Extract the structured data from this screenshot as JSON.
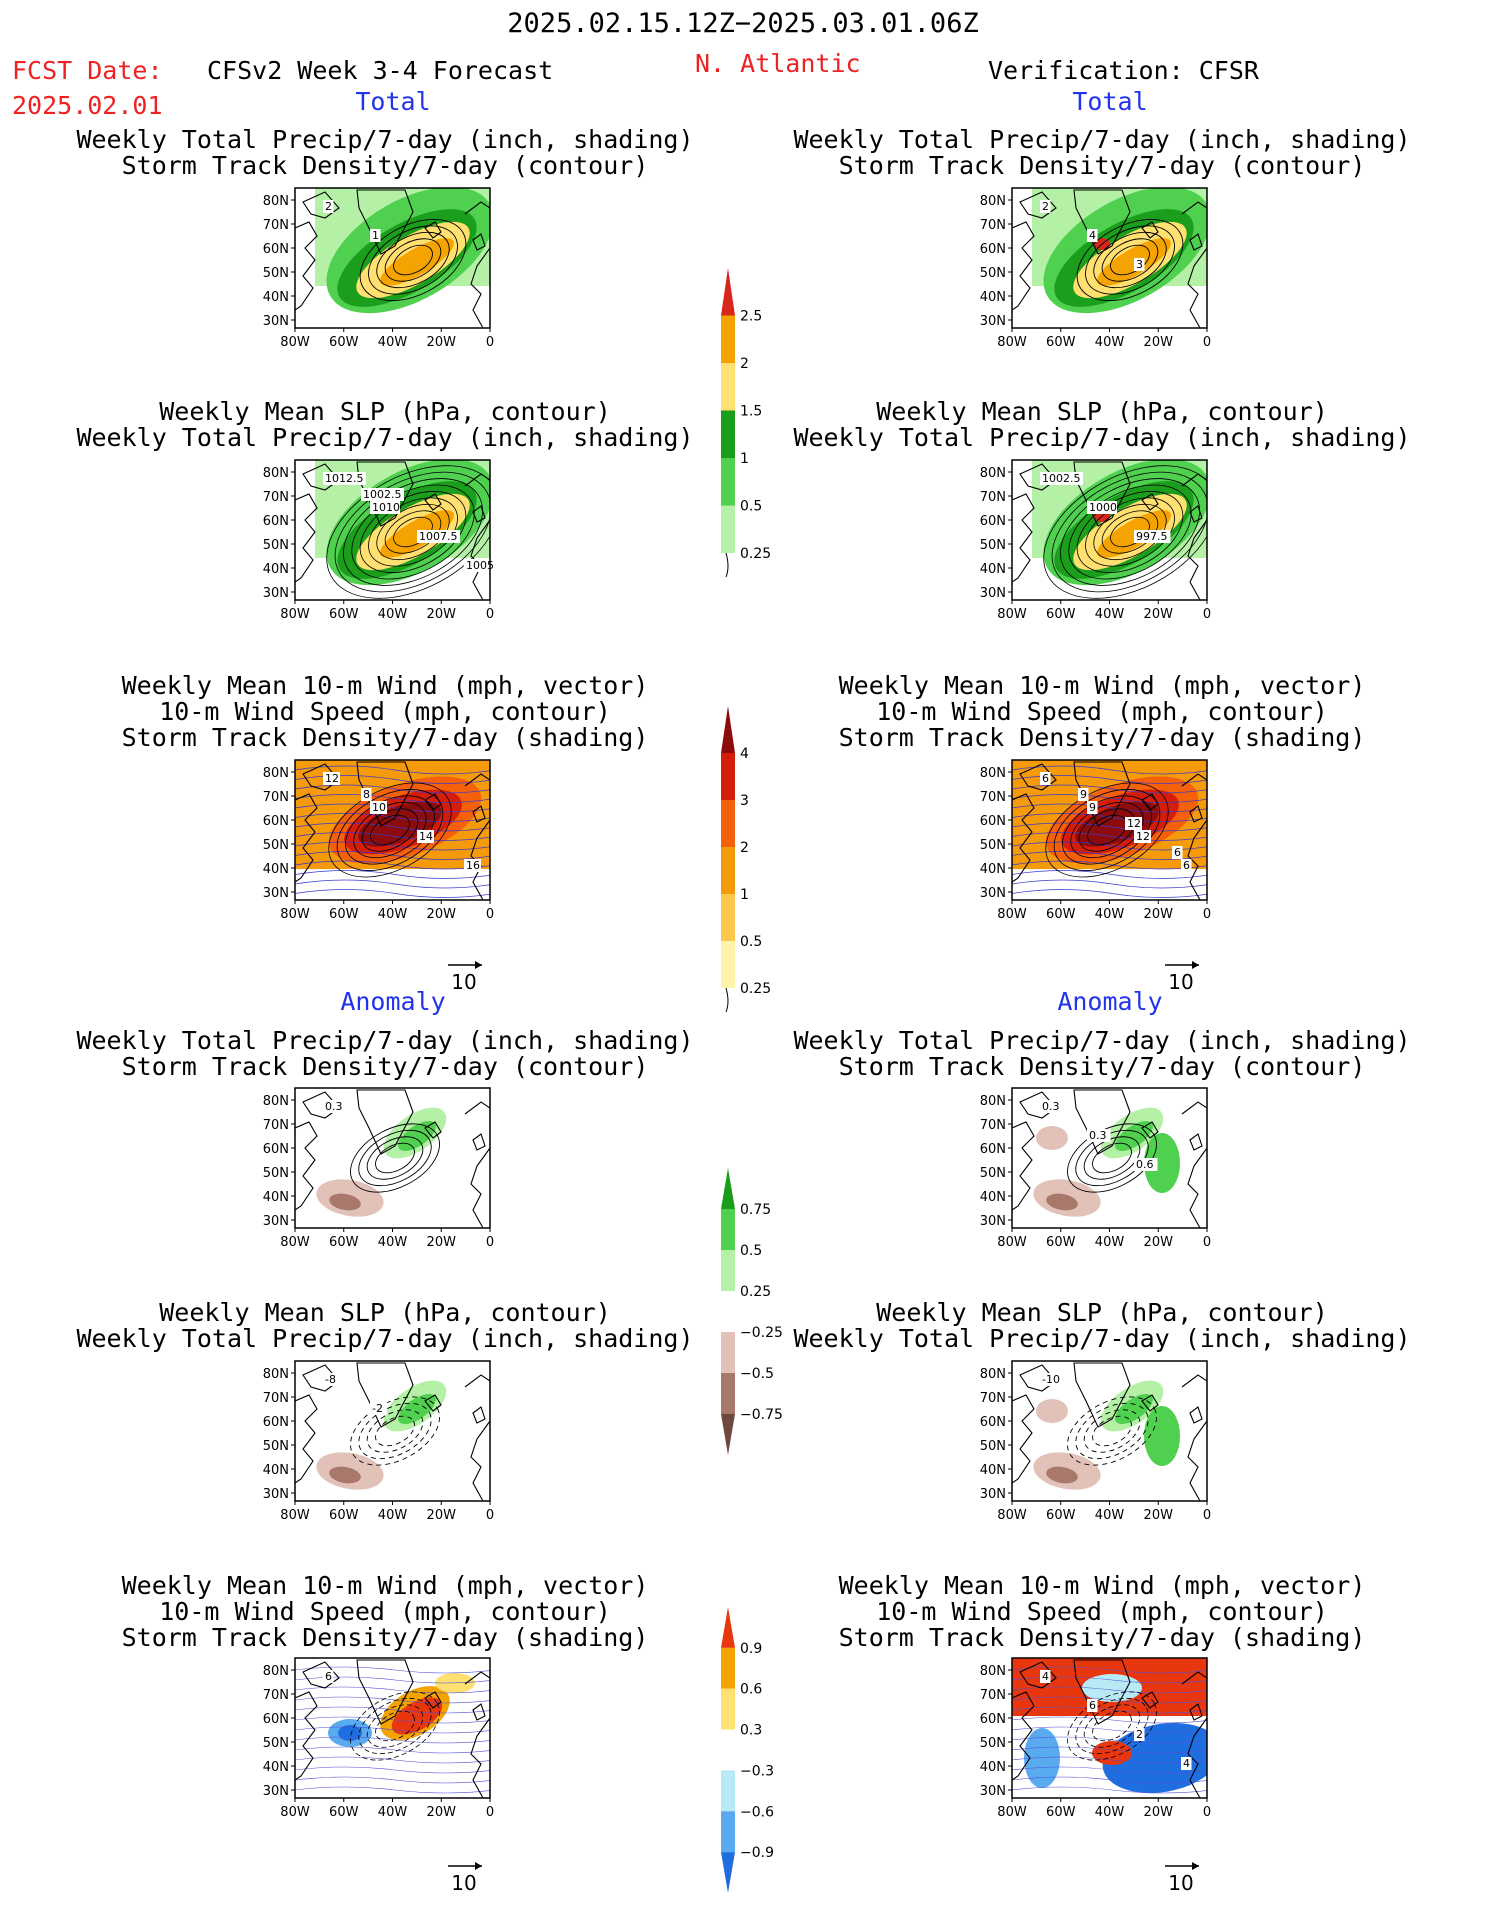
{
  "header": {
    "date_range": "2025.02.15.12Z−2025.03.01.06Z",
    "fcst_label": "FCST Date:",
    "fcst_date": "2025.02.01",
    "model_label": "CFSv2 Week 3-4 Forecast",
    "region": "N. Atlantic",
    "verification_label": "Verification: CFSR",
    "section_total": "Total",
    "section_anomaly": "Anomaly"
  },
  "panel_titles": {
    "precip_storm": [
      "Weekly Total Precip/7-day (inch, shading)",
      "Storm Track Density/7-day (contour)"
    ],
    "slp_precip": [
      "Weekly Mean SLP (hPa, contour)",
      "Weekly Total Precip/7-day (inch, shading)"
    ],
    "wind_storm": [
      "Weekly Mean 10-m Wind (mph, vector)",
      "10-m Wind Speed (mph, contour)",
      "Storm Track Density/7-day (shading)"
    ]
  },
  "axes": {
    "lat_ticks": [
      "80N",
      "70N",
      "60N",
      "50N",
      "40N",
      "30N"
    ],
    "lon_ticks": [
      "80W",
      "60W",
      "40W",
      "20W",
      "0"
    ]
  },
  "vector_ref": "10",
  "colorbars": [
    {
      "name": "total-precip",
      "labels": [
        "2.5",
        "2",
        "1.5",
        "1",
        "0.5",
        "0.25"
      ],
      "colors": [
        "#d7261c",
        "#f5a300",
        "#ffe070",
        "#1b9e1b",
        "#4fd04f",
        "#b4f0a6"
      ]
    },
    {
      "name": "total-storm",
      "labels": [
        "4",
        "3",
        "2",
        "1",
        "0.5",
        "0.25"
      ],
      "colors": [
        "#8c0c0c",
        "#d41e0a",
        "#f5600a",
        "#f59a0a",
        "#fbc84b",
        "#fff3a8"
      ]
    },
    {
      "name": "anom-precip",
      "labels": [
        "0.75",
        "0.5",
        "0.25",
        "−0.25",
        "−0.5",
        "−0.75"
      ],
      "colors": [
        "#1a9e1a",
        "#4fd04f",
        "#b4f0a6",
        "#ffffff",
        "#e2c2b8",
        "#a8786a",
        "#6e4a3e"
      ]
    },
    {
      "name": "anom-storm",
      "labels": [
        "0.9",
        "0.6",
        "0.3",
        "−0.3",
        "−0.6",
        "−0.9"
      ],
      "colors": [
        "#e8360e",
        "#f5a300",
        "#ffe070",
        "#ffffff",
        "#b8eaf5",
        "#5aaaf0",
        "#1f6ee0"
      ]
    }
  ],
  "contour_labels": {
    "total_fcst_precip": [
      "2",
      "1"
    ],
    "total_fcst_slp": [
      "1012.5",
      "1010",
      "1007.5",
      "1005",
      "1002.5"
    ],
    "total_fcst_wind": [
      "12",
      "10",
      "14",
      "16",
      "8"
    ],
    "total_ver_precip": [
      "2",
      "4",
      "3"
    ],
    "total_ver_slp": [
      "1002.5",
      "1000",
      "997.5"
    ],
    "total_ver_wind": [
      "6",
      "9",
      "12",
      "6",
      "9",
      "12",
      "6"
    ],
    "anom_fcst_precip": [
      "0.3"
    ],
    "anom_fcst_slp": [
      "-8",
      "-2"
    ],
    "anom_fcst_wind": [
      "6"
    ],
    "anom_ver_precip": [
      "0.3",
      "0.3",
      "0.6"
    ],
    "anom_ver_slp": [
      "-10"
    ],
    "anom_ver_wind": [
      "4",
      "6",
      "2",
      "4"
    ]
  }
}
